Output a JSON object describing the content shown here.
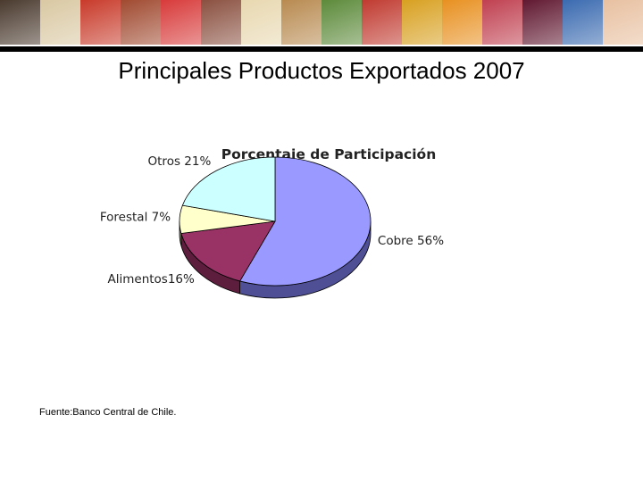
{
  "slide": {
    "title": "Principales Productos Exportados 2007",
    "source_note": "Fuente:Banco Central de Chile."
  },
  "banner": {
    "tiles": [
      "#4a3a2e",
      "#d9c8a2",
      "#c83a2a",
      "#a04a30",
      "#d83a3a",
      "#8a5040",
      "#e8d8b0",
      "#b88a50",
      "#5c8a3a",
      "#c03a30",
      "#d8a020",
      "#e89020",
      "#c04050",
      "#601830",
      "#3a6ab0",
      "#e8c0a0"
    ]
  },
  "chart_data": {
    "type": "pie",
    "title": "Porcentaje de Participación",
    "style": "3d",
    "categories": [
      "Cobre",
      "Alimentos",
      "Forestal",
      "Otros"
    ],
    "values": [
      56,
      16,
      7,
      21
    ],
    "labels": [
      "Cobre 56%",
      "Alimentos16%",
      "Forestal 7%",
      "Otros 21%"
    ],
    "colors": [
      "#9999ff",
      "#993366",
      "#ffffcc",
      "#ccffff"
    ],
    "side_colors": [
      "#4f4f96",
      "#5c1e3c",
      "#9a9a76",
      "#7a9a9a"
    ]
  }
}
